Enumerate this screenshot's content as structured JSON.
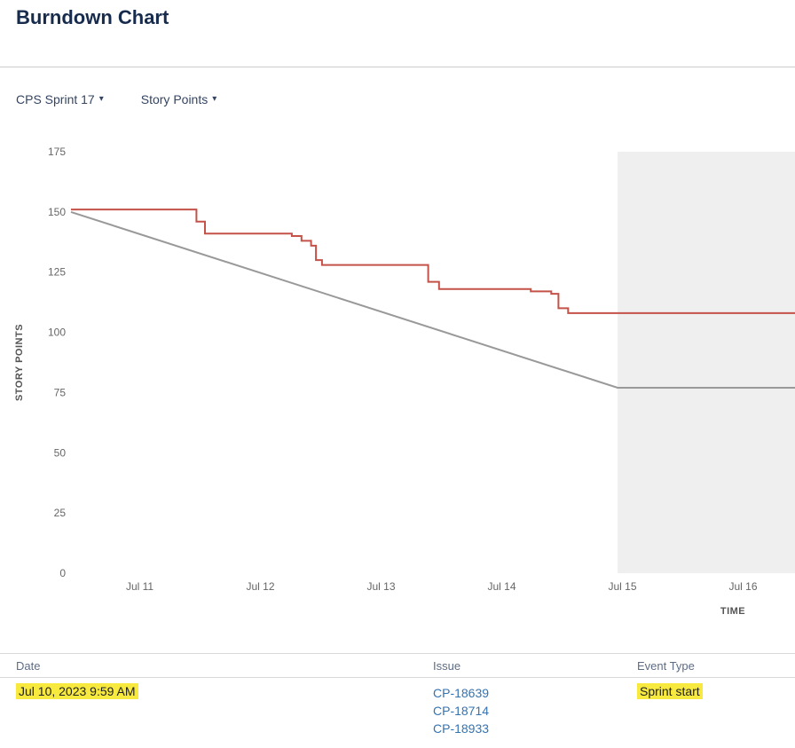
{
  "page": {
    "title": "Burndown Chart"
  },
  "toolbar": {
    "sprint_selector": "CPS Sprint 17",
    "metric_selector": "Story Points"
  },
  "icons": {
    "chevron_down": "▾"
  },
  "colors": {
    "highlight": "#f7e93d",
    "link": "#3573b1",
    "guideline": "#999999",
    "remaining": "#c45248",
    "shade": "#efefef"
  },
  "chart_data": {
    "type": "line",
    "title": "",
    "xlabel": "TIME",
    "ylabel": "STORY POINTS",
    "ylim": [
      0,
      175
    ],
    "x_range_days": [
      10.43,
      16.43
    ],
    "shaded_region_days": [
      14.96,
      16.43
    ],
    "grid": false,
    "legend": "none",
    "y_ticks": [
      175,
      150,
      125,
      100,
      75,
      50,
      25,
      0
    ],
    "x_ticks": [
      {
        "day": 11,
        "label": "Jul 11"
      },
      {
        "day": 12,
        "label": "Jul 12"
      },
      {
        "day": 13,
        "label": "Jul 13"
      },
      {
        "day": 14,
        "label": "Jul 14"
      },
      {
        "day": 15,
        "label": "Jul 15"
      },
      {
        "day": 16,
        "label": "Jul 16"
      }
    ],
    "series": [
      {
        "name": "guideline",
        "color": "#999999",
        "points": [
          [
            10.43,
            150
          ],
          [
            14.96,
            77
          ],
          [
            16.43,
            77
          ]
        ]
      },
      {
        "name": "remaining-values",
        "color": "#c45248",
        "points": [
          [
            10.43,
            151
          ],
          [
            11.47,
            151
          ],
          [
            11.47,
            146
          ],
          [
            11.54,
            146
          ],
          [
            11.54,
            141
          ],
          [
            12.26,
            141
          ],
          [
            12.26,
            140
          ],
          [
            12.34,
            140
          ],
          [
            12.34,
            138
          ],
          [
            12.42,
            138
          ],
          [
            12.42,
            136
          ],
          [
            12.46,
            136
          ],
          [
            12.46,
            130
          ],
          [
            12.51,
            130
          ],
          [
            12.51,
            128
          ],
          [
            13.39,
            128
          ],
          [
            13.39,
            121
          ],
          [
            13.48,
            121
          ],
          [
            13.48,
            118
          ],
          [
            14.24,
            118
          ],
          [
            14.24,
            117
          ],
          [
            14.41,
            117
          ],
          [
            14.41,
            116
          ],
          [
            14.47,
            116
          ],
          [
            14.47,
            110
          ],
          [
            14.55,
            110
          ],
          [
            14.55,
            108
          ],
          [
            16.43,
            108
          ]
        ]
      }
    ]
  },
  "table": {
    "headers": [
      "Date",
      "Issue",
      "Event Type"
    ],
    "rows": [
      {
        "date": "Jul 10, 2023 9:59 AM",
        "date_highlighted": true,
        "issues": [
          "CP-18639",
          "CP-18714",
          "CP-18933"
        ],
        "event_type": "Sprint start",
        "event_highlighted": true
      }
    ]
  }
}
